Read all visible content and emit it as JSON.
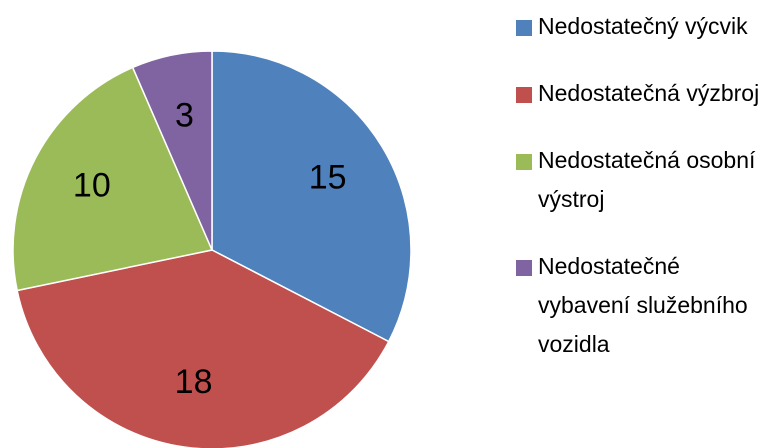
{
  "chart_data": {
    "type": "pie",
    "categories": [
      "Nedostatečný výcvik",
      "Nedostatečná výzbroj",
      "Nedostatečná osobní výstroj",
      "Nedostatečné vybavení služebního vozidla"
    ],
    "values": [
      15,
      18,
      10,
      3
    ],
    "colors": [
      "#4f81bd",
      "#c0504d",
      "#9bbb59",
      "#8064a2"
    ],
    "legend": "right"
  }
}
